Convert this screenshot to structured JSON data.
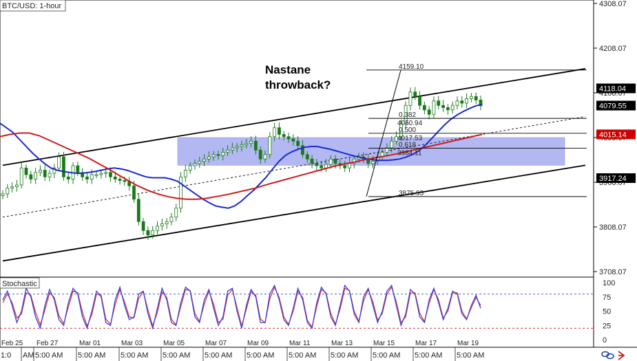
{
  "chart_data": {
    "type": "candlestick",
    "title": "BTC/USD: 1-hour",
    "y_axis": {
      "ticks": [
        "4308.07",
        "4208.07",
        "4108.07",
        "4008.07",
        "3908.07",
        "3808.07",
        "3708.07"
      ],
      "tick_values": [
        4308.07,
        4208.07,
        4108.07,
        4008.07,
        3908.07,
        3808.07,
        3708.07
      ],
      "range": [
        3700,
        4310
      ]
    },
    "x_axis": {
      "date_labels": [
        "Feb 25",
        "Feb 27",
        "Mar 01",
        "Mar 03",
        "Mar 05",
        "Mar 07",
        "Mar 09",
        "Mar 11",
        "Mar 13",
        "Mar 15",
        "Mar 17",
        "Mar 19"
      ],
      "time_labels": [
        "1:0",
        "AM",
        "5:00 AM",
        "5:00 AM",
        "5:00 AM",
        "5:00 AM",
        "5:00 AM",
        "5:00 AM",
        "5:00 AM",
        "5:00 AM",
        "5:00 AM",
        "5:00 AM",
        "5:00 AM"
      ]
    },
    "price_badges": [
      {
        "label": "4118.04",
        "value": 4118.04,
        "bg": "#000000",
        "fg": "#ffffff"
      },
      {
        "label": "4079.55",
        "value": 4079.55,
        "bg": "#000000",
        "fg": "#ffffff"
      },
      {
        "label": "4015.14",
        "value": 4015.14,
        "bg": "#cc0000",
        "fg": "#ffffff"
      },
      {
        "label": "3917.24",
        "value": 3917.24,
        "bg": "#000000",
        "fg": "#ffffff"
      }
    ],
    "fib_levels": [
      {
        "label": "4159.10",
        "value": 4159.1
      },
      {
        "label": "0.382",
        "value": 4050.94,
        "sub": "4050.94"
      },
      {
        "label": "0.500",
        "value": 4017.53,
        "sub": "4017.53"
      },
      {
        "label": "0.618",
        "value": 3984.11,
        "sub": "3984.11"
      },
      {
        "label": "3875.95",
        "value": 3875.95
      }
    ],
    "annotation": [
      "Nastane",
      "throwback?"
    ],
    "channel": {
      "upper": [
        {
          "date": "Feb 25",
          "value": 3946
        },
        {
          "date": "Mar 20",
          "value": 4162
        }
      ],
      "lower": [
        {
          "date": "Feb 25",
          "value": 3732
        },
        {
          "date": "Mar 20",
          "value": 3946
        }
      ],
      "mid": [
        {
          "date": "Feb 25",
          "value": 3830
        },
        {
          "date": "Mar 20",
          "value": 4055
        }
      ]
    },
    "zone": {
      "top": 4008,
      "bottom": 3946,
      "from": "Mar 05",
      "to": "Mar 20"
    },
    "series": [
      {
        "name": "Price",
        "color": "#1a7a1a",
        "values": [
          3882,
          3895,
          3898,
          3902,
          3940,
          3925,
          3915,
          3930,
          3935,
          3920,
          3928,
          3940,
          3965,
          3920,
          3915,
          3945,
          3930,
          3920,
          3915,
          3925,
          3925,
          3928,
          3930,
          3920,
          3915,
          3912,
          3910,
          3900,
          3870,
          3820,
          3800,
          3790,
          3800,
          3810,
          3815,
          3820,
          3830,
          3850,
          3920,
          3935,
          3945,
          3950,
          3955,
          3960,
          3965,
          3970,
          3968,
          3975,
          3980,
          3985,
          3988,
          3992,
          3995,
          4000,
          3980,
          3960,
          3970,
          4010,
          4030,
          4015,
          4010,
          4005,
          4000,
          3990,
          3970,
          3960,
          3950,
          3945,
          3940,
          3948,
          3960,
          3950,
          3945,
          3940,
          3950,
          3960,
          3965,
          3960,
          3950,
          3955,
          3965,
          3975,
          3985,
          4000,
          4010,
          4040,
          4080,
          4110,
          4100,
          4080,
          4070,
          4060,
          4090,
          4080,
          4075,
          4070,
          4080,
          4090,
          4085,
          4095,
          4100,
          4092,
          4079
        ]
      },
      {
        "name": "MA Blue",
        "color": "#1a2acc",
        "values": [
          4040,
          4030,
          4020,
          4005,
          3990,
          3975,
          3962,
          3950,
          3940,
          3935,
          3932,
          3930,
          3928,
          3928,
          3930,
          3932,
          3935,
          3938,
          3940,
          3938,
          3935,
          3930,
          3925,
          3920,
          3918,
          3918,
          3918,
          3915,
          3910,
          3900,
          3890,
          3880,
          3870,
          3862,
          3855,
          3852,
          3850,
          3855,
          3865,
          3878,
          3890,
          3905,
          3920,
          3938,
          3955,
          3968,
          3976,
          3982,
          3986,
          3988,
          3988,
          3985,
          3982,
          3978,
          3974,
          3970,
          3966,
          3963,
          3960,
          3958,
          3957,
          3957,
          3958,
          3960,
          3964,
          3970,
          3978,
          3990,
          4005,
          4020,
          4035,
          4048,
          4058,
          4066,
          4073,
          4079,
          4082
        ]
      },
      {
        "name": "MA Red",
        "color": "#cc1a1a",
        "values": [
          4010,
          4015,
          4018,
          4018,
          4012,
          4002,
          3992,
          3982,
          3972,
          3962,
          3950,
          3938,
          3925,
          3912,
          3900,
          3890,
          3882,
          3876,
          3872,
          3870,
          3870,
          3872,
          3876,
          3880,
          3885,
          3890,
          3895,
          3902,
          3908,
          3914,
          3920,
          3926,
          3932,
          3938,
          3944,
          3949,
          3953,
          3958,
          3962,
          3966,
          3970,
          3975,
          3980,
          3985,
          3990,
          3995,
          4000,
          4005,
          4010,
          4015
        ]
      }
    ],
    "stochastic": {
      "label": "Stochastic",
      "ticks": [
        "100",
        "75",
        "50",
        "25",
        "0"
      ],
      "tick_values": [
        100,
        75,
        50,
        25,
        0
      ],
      "levels": [
        80,
        20
      ],
      "k": [
        70,
        85,
        60,
        30,
        50,
        90,
        75,
        40,
        20,
        60,
        88,
        70,
        35,
        25,
        65,
        90,
        80,
        40,
        20,
        50,
        85,
        75,
        30,
        25,
        70,
        92,
        60,
        35,
        40,
        80,
        85,
        45,
        20,
        55,
        90,
        70,
        30,
        25,
        65,
        92,
        85,
        40,
        30,
        70,
        88,
        55,
        25,
        40,
        85,
        90,
        50,
        20,
        60,
        88,
        75,
        30,
        30,
        80,
        95,
        70,
        35,
        25,
        55,
        90,
        70,
        30,
        20,
        65,
        92,
        80,
        40,
        25,
        60,
        95,
        85,
        45,
        30,
        75,
        90,
        60,
        30,
        50,
        85,
        95,
        60,
        25,
        45,
        88,
        80,
        40,
        30,
        70,
        90,
        65,
        35,
        55,
        85,
        80,
        45,
        35,
        60,
        78,
        55
      ],
      "d": [
        65,
        80,
        65,
        38,
        45,
        82,
        78,
        48,
        26,
        52,
        82,
        74,
        42,
        28,
        58,
        85,
        82,
        48,
        24,
        44,
        80,
        78,
        36,
        27,
        62,
        88,
        66,
        40,
        38,
        72,
        84,
        52,
        24,
        48,
        84,
        74,
        36,
        26,
        58,
        88,
        86,
        46,
        32,
        62,
        85,
        62,
        30,
        36,
        78,
        88,
        56,
        24,
        54,
        84,
        78,
        36,
        30,
        72,
        92,
        74,
        40,
        27,
        50,
        85,
        74,
        34,
        22,
        58,
        88,
        82,
        46,
        27,
        54,
        90,
        86,
        50,
        32,
        68,
        88,
        66,
        34,
        46,
        80,
        92,
        66,
        30,
        40,
        82,
        82,
        46,
        32,
        64,
        88,
        70,
        38,
        50,
        82,
        82,
        50,
        36,
        56,
        74,
        60
      ]
    }
  },
  "colors": {
    "candle_up": "#1a7a1a",
    "candle_down": "#1a7a1a",
    "zone_fill": "#9aa0ee",
    "k_line": "#3344dd",
    "d_line": "#dd3333",
    "level_top": "#4455ee",
    "level_bottom": "#dd3333"
  },
  "icons": [
    "link-icon",
    "arrow-icon"
  ]
}
